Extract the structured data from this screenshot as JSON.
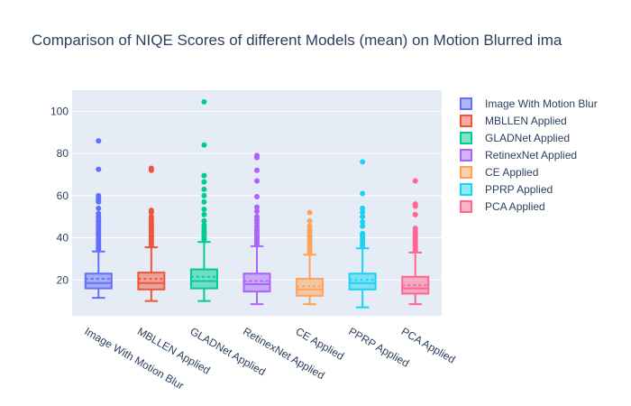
{
  "chart_data": {
    "type": "box",
    "title": "Comparison of NIQE Scores of different Models (mean) on Motion Blurred ima",
    "xlabel": "",
    "ylabel": "",
    "ylim": [
      3,
      110
    ],
    "yticks": [
      20,
      40,
      60,
      80,
      100
    ],
    "grid": true,
    "legend_position": "right",
    "boxmean": "dashed line",
    "series": [
      {
        "name": "Image With Motion Blur",
        "category": "Image With Motion Blur",
        "color": "#636efa",
        "lower_fence": 11.5,
        "q1": 16.0,
        "median": 18.5,
        "q3": 23.0,
        "upper_fence": 33.5,
        "mean": 20.5,
        "outliers": [
          34.5,
          35.5,
          36.5,
          37.5,
          38.5,
          39.5,
          40.5,
          41.5,
          42.5,
          43.5,
          44.5,
          45.5,
          46.5,
          47.5,
          48.5,
          50.0,
          51.5,
          54.0,
          57.0,
          58.0,
          59.0,
          60.0,
          72.5,
          86.0
        ]
      },
      {
        "name": "MBLLEN Applied",
        "category": "MBLLEN Applied",
        "color": "#ef553b",
        "lower_fence": 10.0,
        "q1": 15.5,
        "median": 18.5,
        "q3": 23.5,
        "upper_fence": 35.5,
        "mean": 20.5,
        "outliers": [
          36.5,
          37.5,
          38.5,
          39.5,
          40.5,
          41.5,
          42.5,
          43.5,
          44.5,
          45.5,
          46.5,
          47.5,
          48.5,
          50.0,
          52.0,
          53.0,
          72.0,
          73.0
        ]
      },
      {
        "name": "GLADNet Applied",
        "category": "GLADNet Applied",
        "color": "#00cc96",
        "lower_fence": 10.0,
        "q1": 16.0,
        "median": 19.5,
        "q3": 25.0,
        "upper_fence": 38.0,
        "mean": 21.5,
        "outliers": [
          39.0,
          40.0,
          41.0,
          42.0,
          43.0,
          44.5,
          46.0,
          48.0,
          51.0,
          53.5,
          57.0,
          60.0,
          63.0,
          66.5,
          69.5,
          84.0,
          104.5
        ]
      },
      {
        "name": "RetinexNet Applied",
        "category": "RetinexNet Applied",
        "color": "#ab63fa",
        "lower_fence": 8.5,
        "q1": 14.5,
        "median": 18.0,
        "q3": 23.0,
        "upper_fence": 36.0,
        "mean": 19.5,
        "outliers": [
          37.0,
          38.0,
          39.0,
          40.0,
          41.0,
          42.0,
          43.0,
          44.0,
          45.5,
          47.0,
          48.5,
          50.0,
          52.5,
          54.5,
          59.5,
          67.0,
          72.0,
          78.0,
          79.0
        ]
      },
      {
        "name": "CE Applied",
        "category": "CE Applied",
        "color": "#ffa15a",
        "lower_fence": 8.5,
        "q1": 12.5,
        "median": 15.5,
        "q3": 20.5,
        "upper_fence": 32.0,
        "mean": 17.0,
        "outliers": [
          33.0,
          34.0,
          35.0,
          36.0,
          37.0,
          38.0,
          39.0,
          40.0,
          41.0,
          42.0,
          43.0,
          44.0,
          45.5,
          48.0,
          52.0
        ]
      },
      {
        "name": "PPRP Applied",
        "category": "PPRP Applied",
        "color": "#19d3f3",
        "lower_fence": 7.0,
        "q1": 15.5,
        "median": 18.5,
        "q3": 23.0,
        "upper_fence": 35.0,
        "mean": 20.0,
        "outliers": [
          36.0,
          37.0,
          38.0,
          39.0,
          40.0,
          41.0,
          42.0,
          45.5,
          47.5,
          50.0,
          52.0,
          54.0,
          61.0,
          76.0
        ]
      },
      {
        "name": "PCA Applied",
        "category": "PCA Applied",
        "color": "#ff6692",
        "lower_fence": 8.5,
        "q1": 13.5,
        "median": 16.0,
        "q3": 21.5,
        "upper_fence": 33.0,
        "mean": 17.5,
        "outliers": [
          34.0,
          35.0,
          36.0,
          37.0,
          38.0,
          39.0,
          40.0,
          41.0,
          42.0,
          43.0,
          44.5,
          51.0,
          55.0,
          56.0,
          67.0
        ]
      }
    ]
  }
}
